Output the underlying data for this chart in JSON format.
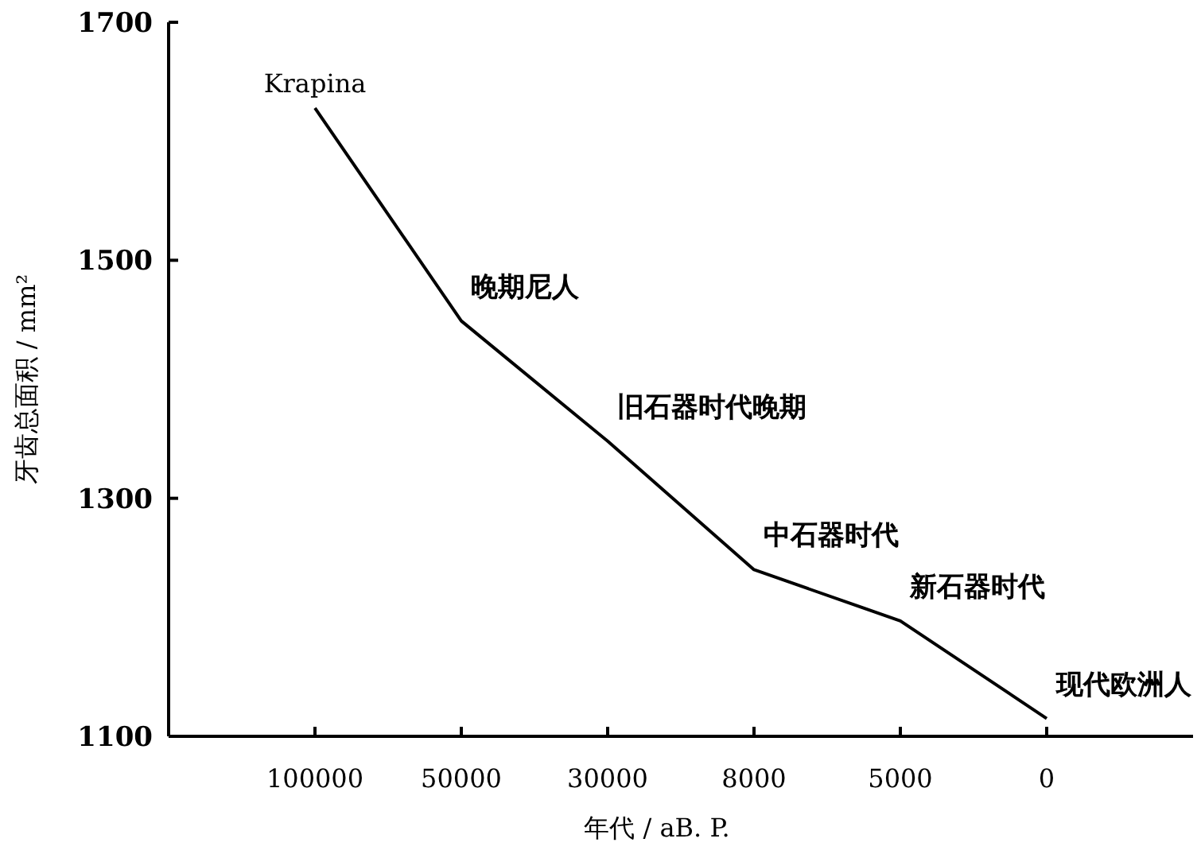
{
  "chart_data": {
    "type": "line",
    "xlabel": "年代 / aB. P.",
    "ylabel": "牙齿总面积 / mm²",
    "categories": [
      "100000",
      "50000",
      "30000",
      "8000",
      "5000",
      "0"
    ],
    "series": [
      {
        "color": "#000000",
        "values": [
          1628,
          1449,
          1348,
          1240,
          1197,
          1115
        ]
      }
    ],
    "ylim": [
      1100,
      1700
    ],
    "yticks": [
      1100,
      1300,
      1500,
      1700
    ],
    "grid": false,
    "marker": "none",
    "line_style": "solid",
    "annotations": [
      {
        "text": "Krapina",
        "x": "100000",
        "y": 1628
      },
      {
        "text": "晚期尼人",
        "x": "50000",
        "y": 1449
      },
      {
        "text": "旧石器时代晚期",
        "x": "30000",
        "y": 1348
      },
      {
        "text": "中石器时代",
        "x": "8000",
        "y": 1240
      },
      {
        "text": "新石器时代",
        "x": "5000",
        "y": 1197
      },
      {
        "text": "现代欧洲人",
        "x": "0",
        "y": 1115
      }
    ]
  }
}
